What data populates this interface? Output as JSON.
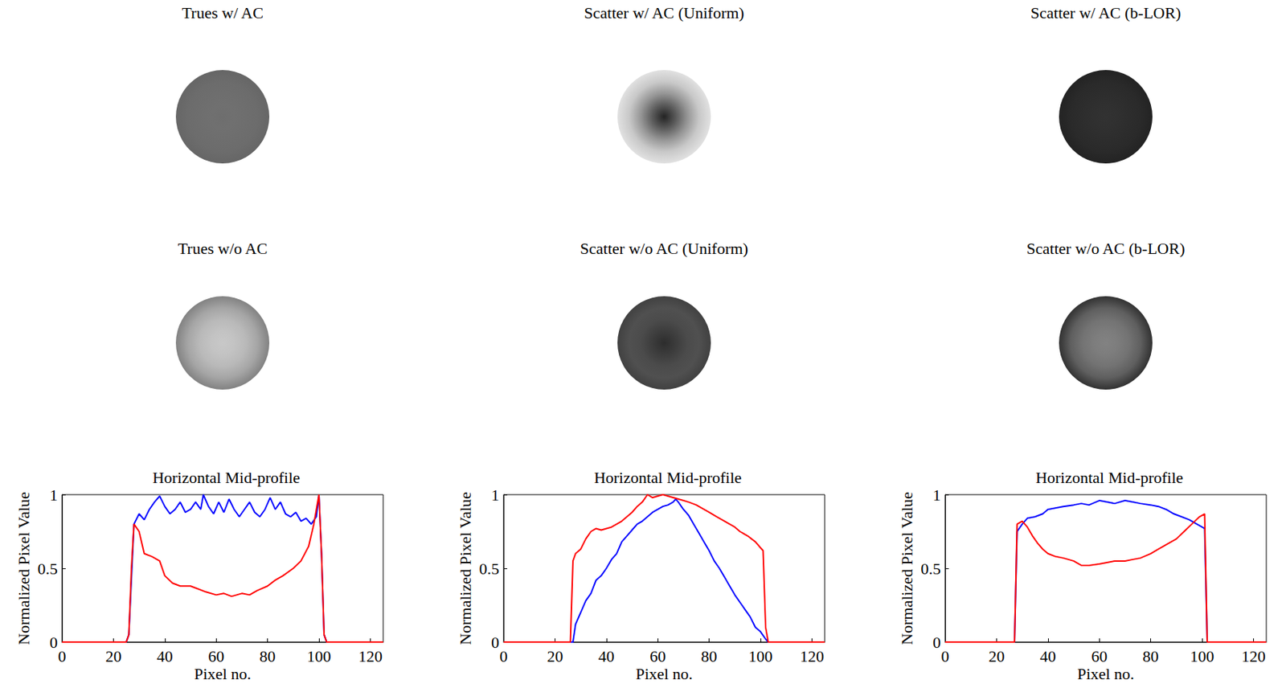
{
  "images": [
    {
      "type": "image",
      "title": "Trues w/ AC",
      "radial_gray": [
        110,
        112,
        110,
        108,
        102
      ]
    },
    {
      "type": "image",
      "title": "Scatter w/ AC (Uniform)",
      "radial_gray": [
        35,
        90,
        150,
        200,
        225
      ]
    },
    {
      "type": "image",
      "title": "Scatter w/ AC (b-LOR)",
      "radial_gray": [
        50,
        48,
        45,
        42,
        35
      ]
    },
    {
      "type": "image",
      "title": "Trues w/o AC",
      "radial_gray": [
        200,
        195,
        185,
        165,
        130
      ]
    },
    {
      "type": "image",
      "title": "Scatter w/o AC (Uniform)",
      "radial_gray": [
        45,
        60,
        75,
        80,
        65
      ]
    },
    {
      "type": "image",
      "title": "Scatter w/o AC (b-LOR)",
      "radial_gray": [
        130,
        125,
        115,
        95,
        50
      ]
    }
  ],
  "chart_data": [
    {
      "type": "line",
      "title": "Horizontal Mid-profile",
      "x_label": "Pixel no.",
      "y_label": "Normalized Pixel Value",
      "xlim": [
        0,
        125
      ],
      "xticks": [
        0,
        20,
        40,
        60,
        80,
        100,
        120
      ],
      "ylim": [
        0,
        1
      ],
      "yticks": [
        0,
        0.5,
        1
      ],
      "grid": false,
      "series": [
        {
          "color": "#0000ff",
          "x": [
            0,
            25,
            26,
            28,
            30,
            32,
            34,
            36,
            38,
            40,
            42,
            44,
            46,
            48,
            50,
            52,
            54,
            55,
            57,
            59,
            61,
            63,
            65,
            67,
            69,
            71,
            73,
            75,
            77,
            79,
            81,
            83,
            85,
            87,
            89,
            91,
            93,
            95,
            97,
            99,
            100,
            101,
            102,
            103,
            125
          ],
          "values": [
            0,
            0,
            0.05,
            0.8,
            0.87,
            0.83,
            0.9,
            0.95,
            0.99,
            0.92,
            0.87,
            0.9,
            0.95,
            0.88,
            0.9,
            0.95,
            0.9,
            1.0,
            0.92,
            0.87,
            0.95,
            0.88,
            0.97,
            0.9,
            0.85,
            0.9,
            0.95,
            0.88,
            0.85,
            0.9,
            0.98,
            0.9,
            0.95,
            0.87,
            0.85,
            0.88,
            0.82,
            0.84,
            0.8,
            0.85,
            1.0,
            0.6,
            0.05,
            0,
            0
          ]
        },
        {
          "color": "#ff0000",
          "x": [
            0,
            25,
            26,
            27,
            28,
            30,
            32,
            35,
            38,
            40,
            43,
            46,
            50,
            53,
            56,
            60,
            63,
            66,
            70,
            73,
            76,
            80,
            83,
            86,
            90,
            93,
            96,
            98,
            100,
            101,
            102,
            103,
            125
          ],
          "values": [
            0,
            0,
            0.05,
            0.5,
            0.8,
            0.75,
            0.6,
            0.58,
            0.55,
            0.45,
            0.4,
            0.38,
            0.38,
            0.36,
            0.34,
            0.32,
            0.33,
            0.31,
            0.33,
            0.32,
            0.35,
            0.38,
            0.42,
            0.45,
            0.5,
            0.55,
            0.65,
            0.8,
            1.0,
            0.6,
            0.05,
            0,
            0
          ]
        }
      ]
    },
    {
      "type": "line",
      "title": "Horizontal Mid-profile",
      "x_label": "Pixel no.",
      "y_label": "Normalized Pixel Value",
      "xlim": [
        0,
        125
      ],
      "xticks": [
        0,
        20,
        40,
        60,
        80,
        100,
        120
      ],
      "ylim": [
        0,
        1
      ],
      "yticks": [
        0,
        0.5,
        1
      ],
      "grid": false,
      "series": [
        {
          "color": "#0000ff",
          "x": [
            0,
            27,
            28,
            30,
            32,
            34,
            36,
            38,
            40,
            42,
            44,
            46,
            48,
            50,
            52,
            54,
            56,
            58,
            60,
            62,
            64,
            66,
            67,
            68,
            70,
            72,
            74,
            76,
            78,
            80,
            82,
            84,
            86,
            88,
            90,
            92,
            94,
            96,
            98,
            100,
            102,
            103,
            125
          ],
          "values": [
            0,
            0,
            0.12,
            0.2,
            0.28,
            0.33,
            0.42,
            0.45,
            0.5,
            0.56,
            0.6,
            0.68,
            0.72,
            0.76,
            0.8,
            0.82,
            0.85,
            0.88,
            0.9,
            0.92,
            0.93,
            0.95,
            0.97,
            0.95,
            0.9,
            0.86,
            0.8,
            0.74,
            0.68,
            0.62,
            0.55,
            0.5,
            0.44,
            0.38,
            0.32,
            0.27,
            0.22,
            0.17,
            0.1,
            0.07,
            0.02,
            0,
            0
          ]
        },
        {
          "color": "#ff0000",
          "x": [
            0,
            26,
            27,
            28,
            30,
            32,
            34,
            36,
            38,
            40,
            42,
            44,
            46,
            48,
            50,
            52,
            54,
            56,
            58,
            60,
            62,
            64,
            66,
            68,
            70,
            72,
            75,
            78,
            80,
            83,
            86,
            88,
            90,
            92,
            95,
            98,
            100,
            101,
            102,
            103,
            125
          ],
          "values": [
            0,
            0,
            0.55,
            0.6,
            0.63,
            0.7,
            0.75,
            0.77,
            0.76,
            0.77,
            0.78,
            0.8,
            0.82,
            0.85,
            0.88,
            0.92,
            0.95,
            1.0,
            0.98,
            0.99,
            1.0,
            0.99,
            0.98,
            0.97,
            0.96,
            0.95,
            0.93,
            0.9,
            0.88,
            0.85,
            0.82,
            0.8,
            0.78,
            0.75,
            0.72,
            0.68,
            0.64,
            0.62,
            0.1,
            0,
            0
          ]
        }
      ]
    },
    {
      "type": "line",
      "title": "Horizontal Mid-profile",
      "x_label": "Pixel no.",
      "y_label": "Normalized Pixel Value",
      "xlim": [
        0,
        125
      ],
      "xticks": [
        0,
        20,
        40,
        60,
        80,
        100,
        120
      ],
      "ylim": [
        0,
        1
      ],
      "yticks": [
        0,
        0.5,
        1
      ],
      "grid": false,
      "series": [
        {
          "color": "#0000ff",
          "x": [
            0,
            27,
            28,
            30,
            32,
            35,
            38,
            40,
            43,
            46,
            50,
            53,
            56,
            60,
            63,
            66,
            70,
            73,
            76,
            80,
            83,
            86,
            89,
            92,
            95,
            98,
            100,
            101,
            102,
            125
          ],
          "values": [
            0,
            0,
            0.75,
            0.8,
            0.84,
            0.85,
            0.87,
            0.9,
            0.91,
            0.92,
            0.93,
            0.94,
            0.93,
            0.96,
            0.95,
            0.94,
            0.96,
            0.95,
            0.94,
            0.93,
            0.92,
            0.9,
            0.87,
            0.85,
            0.83,
            0.8,
            0.78,
            0.77,
            0,
            0
          ]
        },
        {
          "color": "#ff0000",
          "x": [
            0,
            27,
            28,
            30,
            32,
            34,
            36,
            38,
            40,
            43,
            46,
            50,
            53,
            56,
            60,
            63,
            66,
            70,
            73,
            76,
            80,
            83,
            86,
            90,
            93,
            96,
            99,
            101,
            102,
            125
          ],
          "values": [
            0,
            0,
            0.8,
            0.82,
            0.78,
            0.72,
            0.67,
            0.63,
            0.6,
            0.58,
            0.57,
            0.55,
            0.52,
            0.52,
            0.53,
            0.54,
            0.55,
            0.55,
            0.56,
            0.57,
            0.6,
            0.63,
            0.66,
            0.7,
            0.75,
            0.8,
            0.85,
            0.87,
            0,
            0
          ]
        }
      ]
    }
  ]
}
